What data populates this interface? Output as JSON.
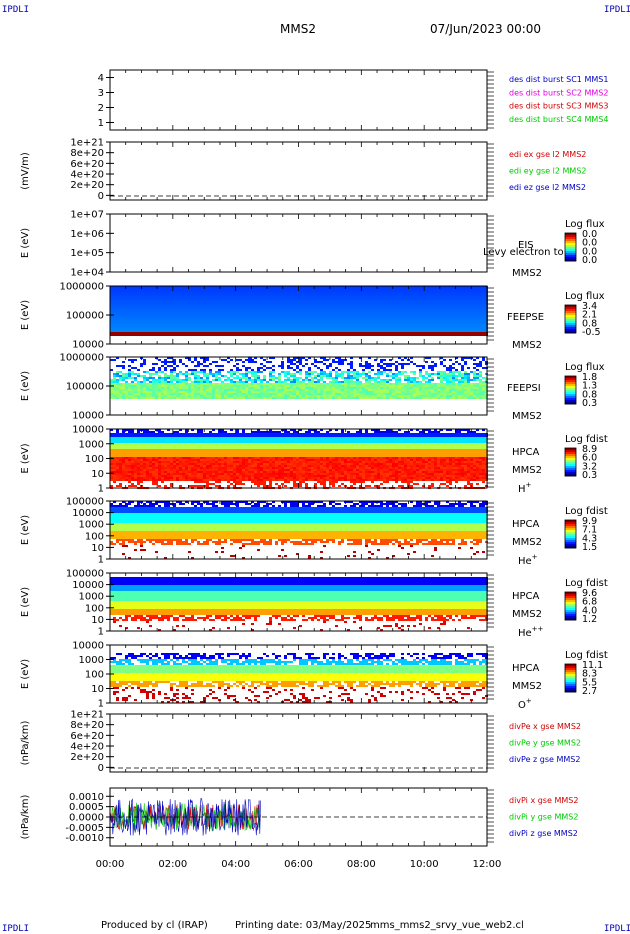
{
  "header": {
    "corner_tl": "IPDLI",
    "corner_tr": "IPDLI",
    "corner_bl": "IPDLI",
    "corner_br": "IPDLI",
    "mission": "MMS2",
    "date": "07/Jun/2023 00:00"
  },
  "footer": {
    "produced": "Produced by cl (IRAP)",
    "printing": "Printing date: 03/May/2025",
    "script": "mms_mms2_srvy_vue_web2.cl"
  },
  "colors": {
    "red": "#d00000",
    "magenta": "#e000e0",
    "green": "#00c800",
    "blue": "#0000c0",
    "black": "#000000"
  },
  "time_axis": {
    "ticks": [
      "00:00",
      "02:00",
      "04:00",
      "06:00",
      "08:00",
      "10:00",
      "12:00"
    ],
    "range_hours": [
      0,
      12
    ]
  },
  "chart_data": [
    {
      "id": "burst",
      "type": "line",
      "ylabel": "",
      "yticks": [
        "1",
        "2",
        "3",
        "4"
      ],
      "ylim": [
        0.5,
        4.5
      ],
      "legend": [
        {
          "label": "des dist burst SC1 MMS1",
          "color": "#0000c0"
        },
        {
          "label": "des dist burst SC2 MMS2",
          "color": "#e000e0"
        },
        {
          "label": "des dist burst SC3 MMS3",
          "color": "#d00000"
        },
        {
          "label": "des dist burst SC4 MMS4",
          "color": "#00c800"
        }
      ],
      "series": []
    },
    {
      "id": "edi",
      "type": "line",
      "ylabel": "(mV/m)",
      "yticks": [
        "0",
        "2e+20",
        "4e+20",
        "6e+20",
        "8e+20",
        "1e+21"
      ],
      "legend": [
        {
          "label": "edi ex gse l2 MMS2",
          "color": "#d00000"
        },
        {
          "label": "edi ey gse l2 MMS2",
          "color": "#00c800"
        },
        {
          "label": "edi ez gse l2 MMS2",
          "color": "#0000c0"
        }
      ],
      "zero_line": true,
      "series": []
    },
    {
      "id": "eis",
      "type": "heatmap",
      "ylabel": "E (eV)",
      "yticks": [
        "1e+04",
        "1e+05",
        "1e+06",
        "1e+07"
      ],
      "instrument": [
        "EIS",
        "MMS2"
      ],
      "overlay_text": "Levy electron to",
      "colorbar": {
        "title": "Log flux",
        "ticks": [
          "0.0",
          "0.0",
          "0.0",
          "0.0"
        ]
      },
      "coverage_hours": [
        0,
        0
      ]
    },
    {
      "id": "feepse",
      "type": "heatmap",
      "ylabel": "E (eV)",
      "yticks": [
        "10000",
        "100000",
        "1000000"
      ],
      "instrument": [
        "FEEPSE",
        "MMS2"
      ],
      "colorbar": {
        "title": "Log flux",
        "ticks": [
          "3.4",
          "2.1",
          "0.8",
          "-0.5"
        ]
      },
      "coverage_hours": [
        0,
        12
      ]
    },
    {
      "id": "feepsi",
      "type": "heatmap",
      "ylabel": "E (eV)",
      "yticks": [
        "10000",
        "100000",
        "1000000"
      ],
      "instrument": [
        "FEEPSI",
        "MMS2"
      ],
      "colorbar": {
        "title": "Log flux",
        "ticks": [
          "1.8",
          "1.3",
          "0.8",
          "0.3"
        ]
      },
      "coverage_hours": [
        0,
        12
      ]
    },
    {
      "id": "hpca_h",
      "type": "heatmap",
      "ylabel": "E (eV)",
      "yticks": [
        "1",
        "10",
        "100",
        "1000",
        "10000"
      ],
      "instrument": [
        "HPCA",
        "MMS2"
      ],
      "species": "H",
      "charge": "+",
      "colorbar": {
        "title": "Log fdist",
        "ticks": [
          "8.9",
          "6.0",
          "3.2",
          "0.3"
        ]
      },
      "coverage_hours": [
        0,
        12
      ]
    },
    {
      "id": "hpca_he",
      "type": "heatmap",
      "ylabel": "E (eV)",
      "yticks": [
        "1",
        "10",
        "100",
        "1000",
        "10000",
        "100000"
      ],
      "instrument": [
        "HPCA",
        "MMS2"
      ],
      "species": "He",
      "charge": "+",
      "colorbar": {
        "title": "Log fdist",
        "ticks": [
          "9.9",
          "7.1",
          "4.3",
          "1.5"
        ]
      },
      "coverage_hours": [
        0,
        12
      ]
    },
    {
      "id": "hpca_hepp",
      "type": "heatmap",
      "ylabel": "E (eV)",
      "yticks": [
        "1",
        "10",
        "100",
        "1000",
        "10000",
        "100000"
      ],
      "instrument": [
        "HPCA",
        "MMS2"
      ],
      "species": "He",
      "charge": "++",
      "colorbar": {
        "title": "Log fdist",
        "ticks": [
          "9.6",
          "6.8",
          "4.0",
          "1.2"
        ]
      },
      "coverage_hours": [
        0,
        12
      ]
    },
    {
      "id": "hpca_o",
      "type": "heatmap",
      "ylabel": "E (eV)",
      "yticks": [
        "1",
        "10",
        "100",
        "1000",
        "10000"
      ],
      "instrument": [
        "HPCA",
        "MMS2"
      ],
      "species": "O",
      "charge": "+",
      "colorbar": {
        "title": "Log fdist",
        "ticks": [
          "11.1",
          "8.3",
          "5.5",
          "2.7"
        ]
      },
      "coverage_hours": [
        0,
        12
      ]
    },
    {
      "id": "divpe",
      "type": "line",
      "ylabel": "(nPa/km)",
      "yticks": [
        "0",
        "2e+20",
        "4e+20",
        "6e+20",
        "8e+20",
        "1e+21"
      ],
      "legend": [
        {
          "label": "divPe x gse MMS2",
          "color": "#d00000"
        },
        {
          "label": "divPe y gse MMS2",
          "color": "#00c800"
        },
        {
          "label": "divPe z gse MMS2",
          "color": "#0000c0"
        }
      ],
      "zero_line": true,
      "series": []
    },
    {
      "id": "divpi",
      "type": "line",
      "ylabel": "(nPa/km)",
      "yticks": [
        "-0.0010",
        "-0.0005",
        "0.0000",
        "0.0005",
        "0.0010"
      ],
      "ylim": [
        -0.0014,
        0.0014
      ],
      "legend": [
        {
          "label": "divPi x gse MMS2",
          "color": "#d00000"
        },
        {
          "label": "divPi y gse MMS2",
          "color": "#00c800"
        },
        {
          "label": "divPi z gse MMS2",
          "color": "#0000c0"
        }
      ],
      "zero_line": true,
      "coverage_hours": [
        0,
        4.8
      ],
      "series": [
        {
          "name": "divPi x gse MMS2",
          "color": "#d00000",
          "amplitude": 0.0006
        },
        {
          "name": "divPi y gse MMS2",
          "color": "#00c800",
          "amplitude": 0.0007
        },
        {
          "name": "divPi z gse MMS2",
          "color": "#0000c0",
          "amplitude": 0.0009
        }
      ]
    }
  ]
}
